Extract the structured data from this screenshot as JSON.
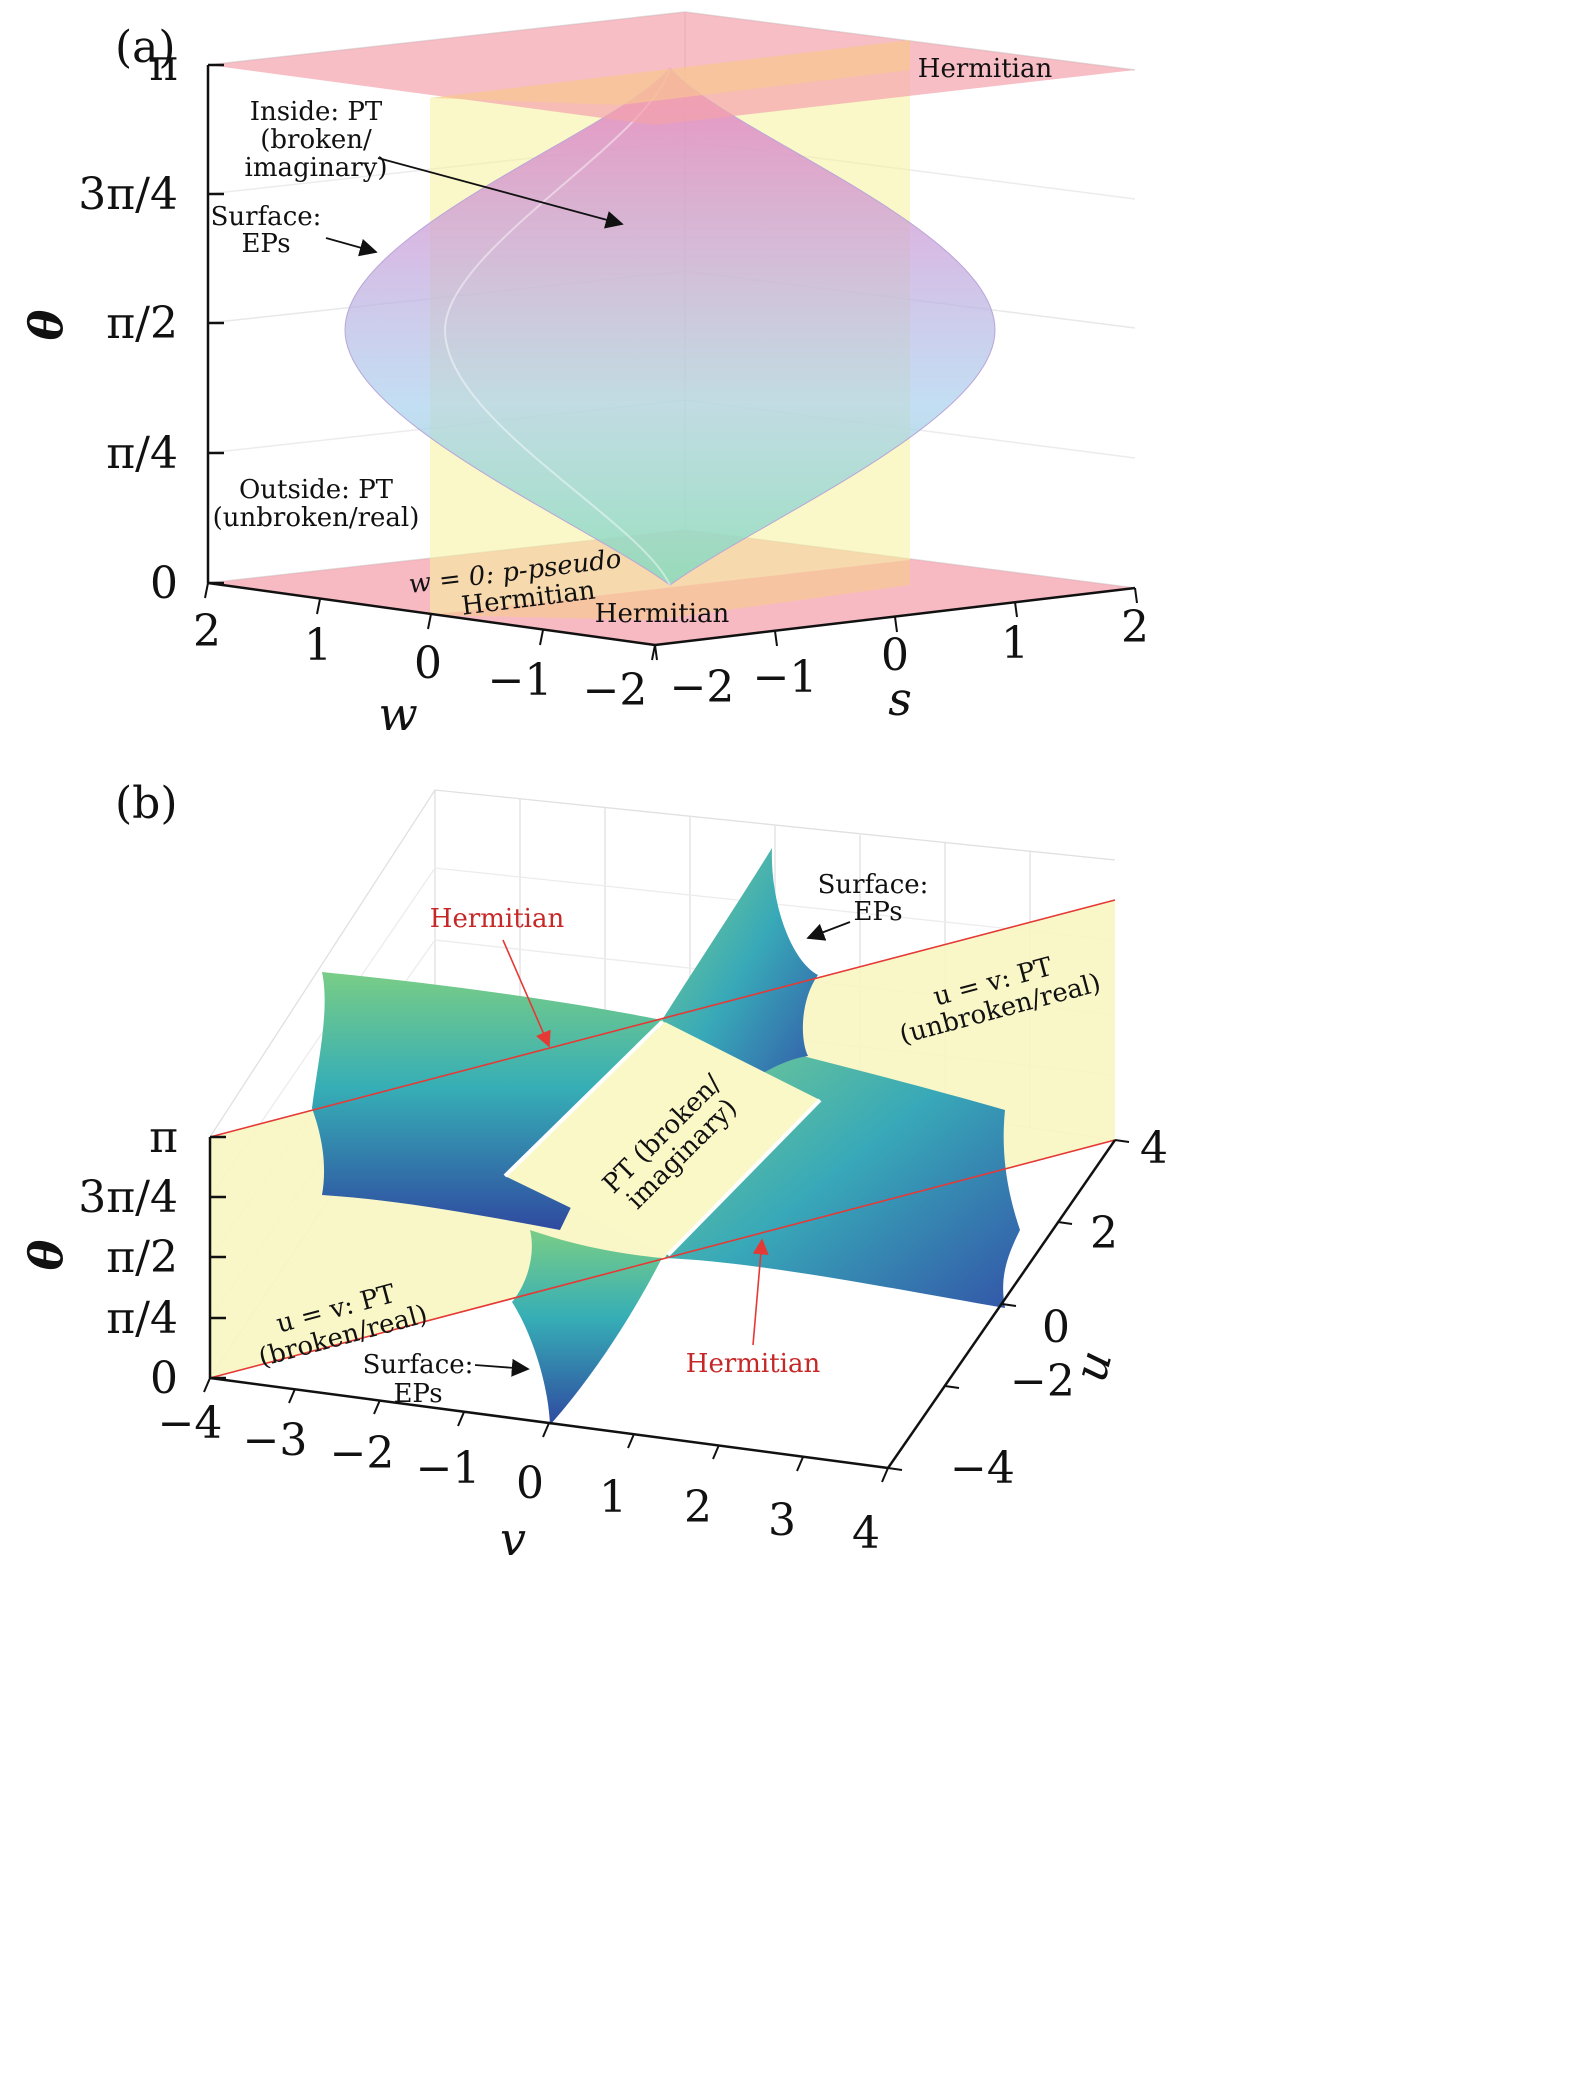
{
  "chart_data": [
    {
      "panel": "(a)",
      "type": "surface3d",
      "axes": {
        "w": {
          "label": "w",
          "ticks": [
            "2",
            "1",
            "0",
            "−1",
            "−2"
          ],
          "range": [
            -2,
            2
          ]
        },
        "s": {
          "label": "s",
          "ticks": [
            "−2",
            "−1",
            "0",
            "1",
            "2"
          ],
          "range": [
            -2,
            2
          ]
        },
        "theta": {
          "label": "θ",
          "ticks": [
            "0",
            "π/4",
            "π/2",
            "3π/4",
            "π"
          ],
          "range": [
            0,
            3.1416
          ]
        }
      },
      "annotations": [
        {
          "id": "hermitian-top",
          "text": "Hermitian"
        },
        {
          "id": "inside",
          "lines": [
            "Inside: PT",
            "(broken/",
            "imaginary)"
          ]
        },
        {
          "id": "surface",
          "lines": [
            "Surface:",
            "EPs"
          ]
        },
        {
          "id": "outside",
          "lines": [
            "Outside: PT",
            "(unbroken/real)"
          ]
        },
        {
          "id": "w0",
          "lines": [
            "w = 0: p-pseudo",
            "Hermitian"
          ]
        },
        {
          "id": "hermitian-bottom",
          "text": "Hermitian"
        }
      ],
      "colors": {
        "hermitian_plane": "#f4a3ad",
        "w0_plane": "#f7f4a8",
        "surface_top": "#e58cc4",
        "surface_mid": "#c7b5e2",
        "surface_bottom": "#8fe0c4"
      }
    },
    {
      "panel": "(b)",
      "type": "surface3d",
      "axes": {
        "v": {
          "label": "v",
          "ticks": [
            "−4",
            "−3",
            "−2",
            "−1",
            "0",
            "1",
            "2",
            "3",
            "4"
          ],
          "range": [
            -4,
            4
          ]
        },
        "u": {
          "label": "u",
          "ticks": [
            "−4",
            "−2",
            "0",
            "2",
            "4"
          ],
          "range": [
            -4,
            4
          ]
        },
        "theta": {
          "label": "θ",
          "ticks": [
            "0",
            "π/4",
            "π/2",
            "3π/4",
            "π"
          ],
          "range": [
            0,
            3.1416
          ]
        }
      },
      "annotations": [
        {
          "id": "hermitian-upper",
          "text": "Hermitian"
        },
        {
          "id": "surface-upper",
          "lines": [
            "Surface:",
            "EPs"
          ]
        },
        {
          "id": "uv-right",
          "lines": [
            "u = v: PT",
            "(unbroken/real)"
          ]
        },
        {
          "id": "pt-broken",
          "lines": [
            "PT (broken/",
            "imaginary)"
          ]
        },
        {
          "id": "uv-left",
          "lines": [
            "u = v: PT",
            "(broken/real)"
          ]
        },
        {
          "id": "surface-lower",
          "lines": [
            "Surface:",
            "EPs"
          ]
        },
        {
          "id": "hermitian-lower",
          "text": "Hermitian"
        }
      ],
      "colors": {
        "uv_plane": "#f8f6c2",
        "hermitian_line": "#e53935",
        "surface_light": "#6cc78a",
        "surface_mid": "#2aa6b8",
        "surface_dark": "#2f4a9e"
      }
    }
  ]
}
